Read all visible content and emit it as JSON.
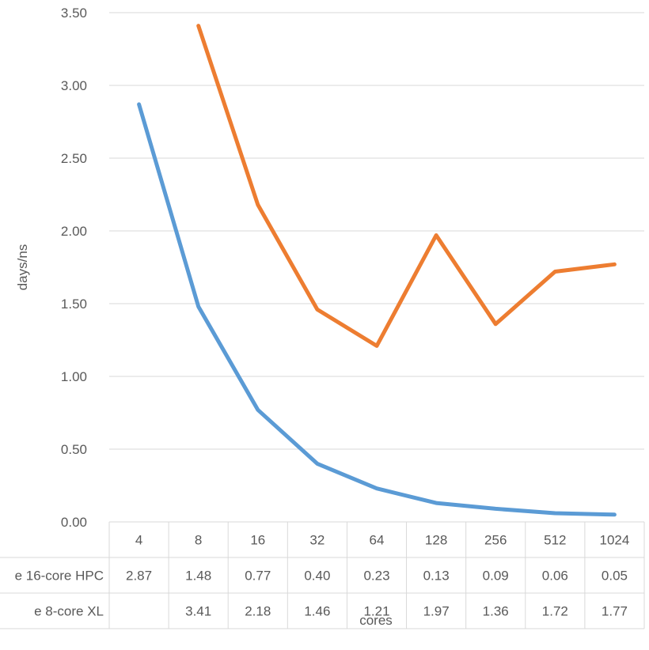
{
  "chart_data": {
    "type": "line",
    "title": "",
    "xlabel": "cores",
    "ylabel": "days/ns",
    "ylim": [
      0,
      3.5
    ],
    "yticks": [
      "0.00",
      "0.50",
      "1.00",
      "1.50",
      "2.00",
      "2.50",
      "3.00",
      "3.50"
    ],
    "grid": true,
    "legend": "data-table",
    "categories": [
      "4",
      "8",
      "16",
      "32",
      "64",
      "128",
      "256",
      "512",
      "1024"
    ],
    "series": [
      {
        "name": "e 16-core HPC",
        "color": "#5b9bd5",
        "values": [
          2.87,
          1.48,
          0.77,
          0.4,
          0.23,
          0.13,
          0.09,
          0.06,
          0.05
        ],
        "labels": [
          "2.87",
          "1.48",
          "0.77",
          "0.40",
          "0.23",
          "0.13",
          "0.09",
          "0.06",
          "0.05"
        ]
      },
      {
        "name": "e 8-core XL",
        "color": "#ed7d31",
        "values": [
          null,
          3.41,
          2.18,
          1.46,
          1.21,
          1.97,
          1.36,
          1.72,
          1.77
        ],
        "labels": [
          "",
          "3.41",
          "2.18",
          "1.46",
          "1.21",
          "1.97",
          "1.36",
          "1.72",
          "1.77"
        ]
      }
    ]
  }
}
